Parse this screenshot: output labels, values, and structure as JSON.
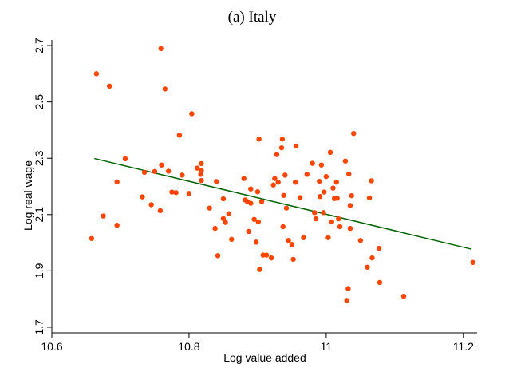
{
  "chart_data": {
    "type": "scatter",
    "title": "(a) Italy",
    "xlabel": "Log value added",
    "ylabel": "Log real wage",
    "xlim": [
      10.6,
      11.22
    ],
    "ylim": [
      1.68,
      2.72
    ],
    "xticks": [
      10.6,
      10.8,
      11,
      11.2
    ],
    "xtick_labels": [
      "10.6",
      "10.8",
      "11",
      "11.2"
    ],
    "yticks": [
      1.7,
      1.9,
      2.1,
      2.3,
      2.5,
      2.7
    ],
    "ytick_labels": [
      "1.7",
      "1.9",
      "2.1",
      "2.3",
      "2.5",
      "2.7"
    ],
    "grid": false,
    "legend": "none",
    "colors": {
      "points": "#ff4500",
      "fit_line": "#006400"
    },
    "fit_line": {
      "x": [
        10.662,
        11.212
      ],
      "y": [
        2.299,
        1.977
      ]
    },
    "points": [
      {
        "x": 10.658,
        "y": 2.015
      },
      {
        "x": 10.665,
        "y": 2.6
      },
      {
        "x": 10.675,
        "y": 2.095
      },
      {
        "x": 10.684,
        "y": 2.556
      },
      {
        "x": 10.695,
        "y": 2.216
      },
      {
        "x": 10.695,
        "y": 2.062
      },
      {
        "x": 10.707,
        "y": 2.298
      },
      {
        "x": 10.732,
        "y": 2.163
      },
      {
        "x": 10.735,
        "y": 2.25
      },
      {
        "x": 10.745,
        "y": 2.135
      },
      {
        "x": 10.75,
        "y": 2.253
      },
      {
        "x": 10.758,
        "y": 2.114
      },
      {
        "x": 10.759,
        "y": 2.689
      },
      {
        "x": 10.76,
        "y": 2.276
      },
      {
        "x": 10.765,
        "y": 2.546
      },
      {
        "x": 10.77,
        "y": 2.254
      },
      {
        "x": 10.775,
        "y": 2.18
      },
      {
        "x": 10.781,
        "y": 2.178
      },
      {
        "x": 10.786,
        "y": 2.382
      },
      {
        "x": 10.79,
        "y": 2.24
      },
      {
        "x": 10.8,
        "y": 2.175
      },
      {
        "x": 10.804,
        "y": 2.458
      },
      {
        "x": 10.812,
        "y": 2.265
      },
      {
        "x": 10.817,
        "y": 2.243
      },
      {
        "x": 10.818,
        "y": 2.256
      },
      {
        "x": 10.818,
        "y": 2.281
      },
      {
        "x": 10.818,
        "y": 2.221
      },
      {
        "x": 10.83,
        "y": 2.123
      },
      {
        "x": 10.838,
        "y": 2.051
      },
      {
        "x": 10.84,
        "y": 2.217
      },
      {
        "x": 10.842,
        "y": 1.954
      },
      {
        "x": 10.85,
        "y": 2.086
      },
      {
        "x": 10.85,
        "y": 2.156
      },
      {
        "x": 10.853,
        "y": 2.072
      },
      {
        "x": 10.858,
        "y": 2.103
      },
      {
        "x": 10.862,
        "y": 2.012
      },
      {
        "x": 10.88,
        "y": 2.228
      },
      {
        "x": 10.882,
        "y": 2.152
      },
      {
        "x": 10.885,
        "y": 2.146
      },
      {
        "x": 10.887,
        "y": 2.04
      },
      {
        "x": 10.89,
        "y": 2.191
      },
      {
        "x": 10.89,
        "y": 2.14
      },
      {
        "x": 10.895,
        "y": 2.083
      },
      {
        "x": 10.898,
        "y": 2.002
      },
      {
        "x": 10.9,
        "y": 2.181
      },
      {
        "x": 10.901,
        "y": 2.074
      },
      {
        "x": 10.902,
        "y": 2.368
      },
      {
        "x": 10.903,
        "y": 1.905
      },
      {
        "x": 10.906,
        "y": 2.146
      },
      {
        "x": 10.908,
        "y": 1.956
      },
      {
        "x": 10.913,
        "y": 1.956
      },
      {
        "x": 10.92,
        "y": 1.946
      },
      {
        "x": 10.923,
        "y": 2.205
      },
      {
        "x": 10.925,
        "y": 2.228
      },
      {
        "x": 10.928,
        "y": 2.313
      },
      {
        "x": 10.93,
        "y": 2.215
      },
      {
        "x": 10.935,
        "y": 2.337
      },
      {
        "x": 10.936,
        "y": 2.368
      },
      {
        "x": 10.937,
        "y": 2.057
      },
      {
        "x": 10.938,
        "y": 2.168
      },
      {
        "x": 10.94,
        "y": 2.24
      },
      {
        "x": 10.942,
        "y": 2.123
      },
      {
        "x": 10.945,
        "y": 2.008
      },
      {
        "x": 10.95,
        "y": 1.994
      },
      {
        "x": 10.952,
        "y": 1.941
      },
      {
        "x": 10.955,
        "y": 2.215
      },
      {
        "x": 10.956,
        "y": 2.343
      },
      {
        "x": 10.962,
        "y": 2.16
      },
      {
        "x": 10.967,
        "y": 2.018
      },
      {
        "x": 10.972,
        "y": 2.243
      },
      {
        "x": 10.98,
        "y": 2.282
      },
      {
        "x": 10.983,
        "y": 2.107
      },
      {
        "x": 10.985,
        "y": 2.085
      },
      {
        "x": 10.99,
        "y": 2.218
      },
      {
        "x": 10.991,
        "y": 2.164
      },
      {
        "x": 10.993,
        "y": 2.276
      },
      {
        "x": 10.996,
        "y": 2.107
      },
      {
        "x": 10.997,
        "y": 2.18
      },
      {
        "x": 11.0,
        "y": 2.235
      },
      {
        "x": 11.003,
        "y": 2.018
      },
      {
        "x": 11.006,
        "y": 2.321
      },
      {
        "x": 11.008,
        "y": 2.074
      },
      {
        "x": 11.01,
        "y": 2.194
      },
      {
        "x": 11.012,
        "y": 2.157
      },
      {
        "x": 11.015,
        "y": 2.215
      },
      {
        "x": 11.016,
        "y": 2.158
      },
      {
        "x": 11.018,
        "y": 2.085
      },
      {
        "x": 11.02,
        "y": 2.057
      },
      {
        "x": 11.028,
        "y": 2.29
      },
      {
        "x": 11.03,
        "y": 1.795
      },
      {
        "x": 11.032,
        "y": 1.837
      },
      {
        "x": 11.033,
        "y": 2.244
      },
      {
        "x": 11.035,
        "y": 2.132
      },
      {
        "x": 11.035,
        "y": 2.051
      },
      {
        "x": 11.037,
        "y": 2.167
      },
      {
        "x": 11.04,
        "y": 2.388
      },
      {
        "x": 11.05,
        "y": 2.008
      },
      {
        "x": 11.06,
        "y": 1.913
      },
      {
        "x": 11.063,
        "y": 2.159
      },
      {
        "x": 11.066,
        "y": 2.22
      },
      {
        "x": 11.067,
        "y": 1.946
      },
      {
        "x": 11.077,
        "y": 1.98
      },
      {
        "x": 11.078,
        "y": 1.859
      },
      {
        "x": 11.113,
        "y": 1.81
      },
      {
        "x": 11.214,
        "y": 1.93
      }
    ]
  }
}
